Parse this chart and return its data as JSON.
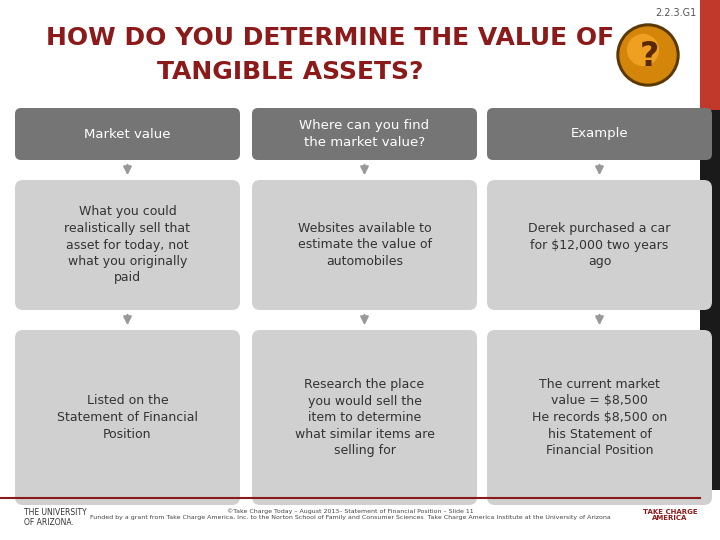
{
  "title_line1": "HOW DO YOU DETERMINE THE VALUE OF",
  "title_line2": "TANGIBLE ASSETS?",
  "slide_id": "2.2.3.G1",
  "title_color": "#8B1A1A",
  "bg_color": "#FFFFFF",
  "header_bg": "#757575",
  "header_text_color": "#FFFFFF",
  "cell_bg": "#D0D0D0",
  "cell_text_color": "#333333",
  "arrow_color": "#999999",
  "red_bar_color": "#C0392B",
  "dark_bar_color": "#1A1A1A",
  "columns": [
    {
      "header": "Market value",
      "row1": "What you could\nrealistically sell that\nasset for today, not\nwhat you originally\npaid",
      "row2": "Listed on the\nStatement of Financial\nPosition"
    },
    {
      "header": "Where can you find\nthe market value?",
      "row1": "Websites available to\nestimate the value of\nautomobiles",
      "row2": "Research the place\nyou would sell the\nitem to determine\nwhat similar items are\nselling for"
    },
    {
      "header": "Example",
      "row1": "Derek purchased a car\nfor $12,000 two years\nago",
      "row2": "The current market\nvalue = $8,500\nHe records $8,500 on\nhis Statement of\nFinancial Position"
    }
  ],
  "footer_text": "©Take Charge Today – August 2013– Statement of Financial Position – Slide 11\nFunded by a grant from Take Charge America, Inc. to the Norton School of Family and Consumer Sciences  Take Charge America Institute at the University of Arizona"
}
